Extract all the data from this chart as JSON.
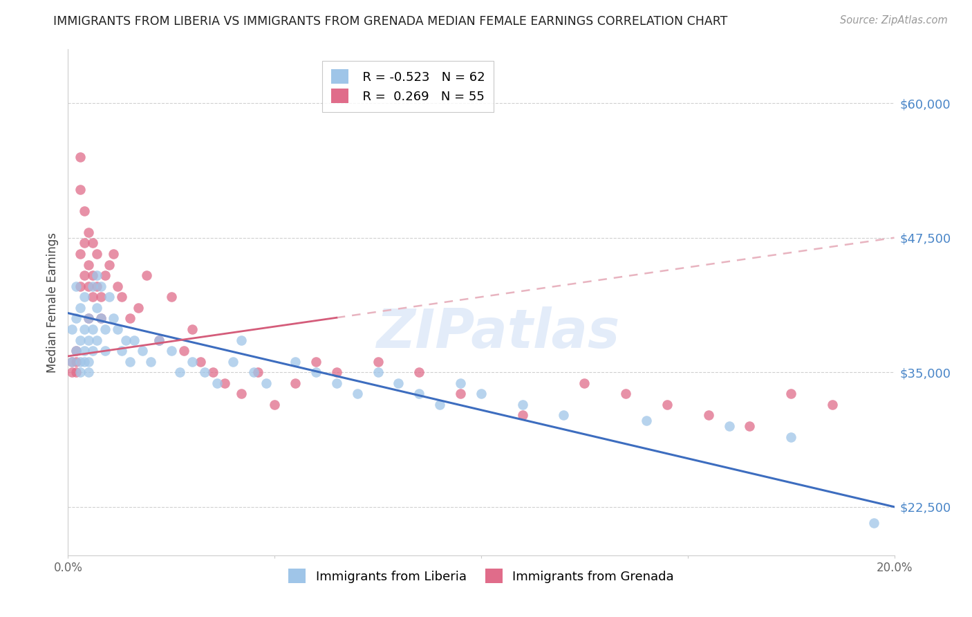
{
  "title": "IMMIGRANTS FROM LIBERIA VS IMMIGRANTS FROM GRENADA MEDIAN FEMALE EARNINGS CORRELATION CHART",
  "source": "Source: ZipAtlas.com",
  "ylabel": "Median Female Earnings",
  "xlim": [
    0.0,
    0.2
  ],
  "ylim": [
    18000,
    65000
  ],
  "yticks": [
    22500,
    35000,
    47500,
    60000
  ],
  "ytick_labels": [
    "$22,500",
    "$35,000",
    "$47,500",
    "$60,000"
  ],
  "xticks": [
    0.0,
    0.05,
    0.1,
    0.15,
    0.2
  ],
  "xtick_labels": [
    "0.0%",
    "",
    "",
    "",
    "20.0%"
  ],
  "liberia_color": "#9fc5e8",
  "grenada_color": "#e06c8a",
  "liberia_line_color": "#3d6dbf",
  "grenada_line_color": "#d45c7a",
  "grenada_dashed_color": "#e8b4c0",
  "R_liberia": -0.523,
  "N_liberia": 62,
  "R_grenada": 0.269,
  "N_grenada": 55,
  "watermark_text": "ZIPatlas",
  "axis_label_color": "#4a86c8",
  "title_color": "#222222",
  "source_color": "#999999",
  "background_color": "#ffffff",
  "liberia_x": [
    0.001,
    0.001,
    0.002,
    0.002,
    0.002,
    0.003,
    0.003,
    0.003,
    0.003,
    0.004,
    0.004,
    0.004,
    0.004,
    0.005,
    0.005,
    0.005,
    0.005,
    0.006,
    0.006,
    0.006,
    0.007,
    0.007,
    0.007,
    0.008,
    0.008,
    0.009,
    0.009,
    0.01,
    0.011,
    0.012,
    0.013,
    0.014,
    0.015,
    0.016,
    0.018,
    0.02,
    0.022,
    0.025,
    0.027,
    0.03,
    0.033,
    0.036,
    0.04,
    0.042,
    0.045,
    0.048,
    0.055,
    0.06,
    0.065,
    0.07,
    0.075,
    0.08,
    0.085,
    0.09,
    0.095,
    0.1,
    0.11,
    0.12,
    0.14,
    0.16,
    0.175,
    0.195
  ],
  "liberia_y": [
    39000,
    36000,
    40000,
    43000,
    37000,
    41000,
    38000,
    36000,
    35000,
    39000,
    42000,
    37000,
    36000,
    40000,
    38000,
    36000,
    35000,
    39000,
    43000,
    37000,
    44000,
    41000,
    38000,
    43000,
    40000,
    39000,
    37000,
    42000,
    40000,
    39000,
    37000,
    38000,
    36000,
    38000,
    37000,
    36000,
    38000,
    37000,
    35000,
    36000,
    35000,
    34000,
    36000,
    38000,
    35000,
    34000,
    36000,
    35000,
    34000,
    33000,
    35000,
    34000,
    33000,
    32000,
    34000,
    33000,
    32000,
    31000,
    30500,
    30000,
    29000,
    21000
  ],
  "grenada_x": [
    0.001,
    0.001,
    0.002,
    0.002,
    0.002,
    0.003,
    0.003,
    0.003,
    0.003,
    0.004,
    0.004,
    0.004,
    0.005,
    0.005,
    0.005,
    0.005,
    0.006,
    0.006,
    0.006,
    0.007,
    0.007,
    0.008,
    0.008,
    0.009,
    0.01,
    0.011,
    0.012,
    0.013,
    0.015,
    0.017,
    0.019,
    0.022,
    0.025,
    0.028,
    0.03,
    0.032,
    0.035,
    0.038,
    0.042,
    0.046,
    0.05,
    0.055,
    0.06,
    0.065,
    0.075,
    0.085,
    0.095,
    0.11,
    0.125,
    0.135,
    0.145,
    0.155,
    0.165,
    0.175,
    0.185
  ],
  "grenada_y": [
    36000,
    35000,
    37000,
    36000,
    35000,
    55000,
    52000,
    46000,
    43000,
    50000,
    47000,
    44000,
    48000,
    45000,
    43000,
    40000,
    44000,
    47000,
    42000,
    43000,
    46000,
    42000,
    40000,
    44000,
    45000,
    46000,
    43000,
    42000,
    40000,
    41000,
    44000,
    38000,
    42000,
    37000,
    39000,
    36000,
    35000,
    34000,
    33000,
    35000,
    32000,
    34000,
    36000,
    35000,
    36000,
    35000,
    33000,
    31000,
    34000,
    33000,
    32000,
    31000,
    30000,
    33000,
    32000
  ]
}
